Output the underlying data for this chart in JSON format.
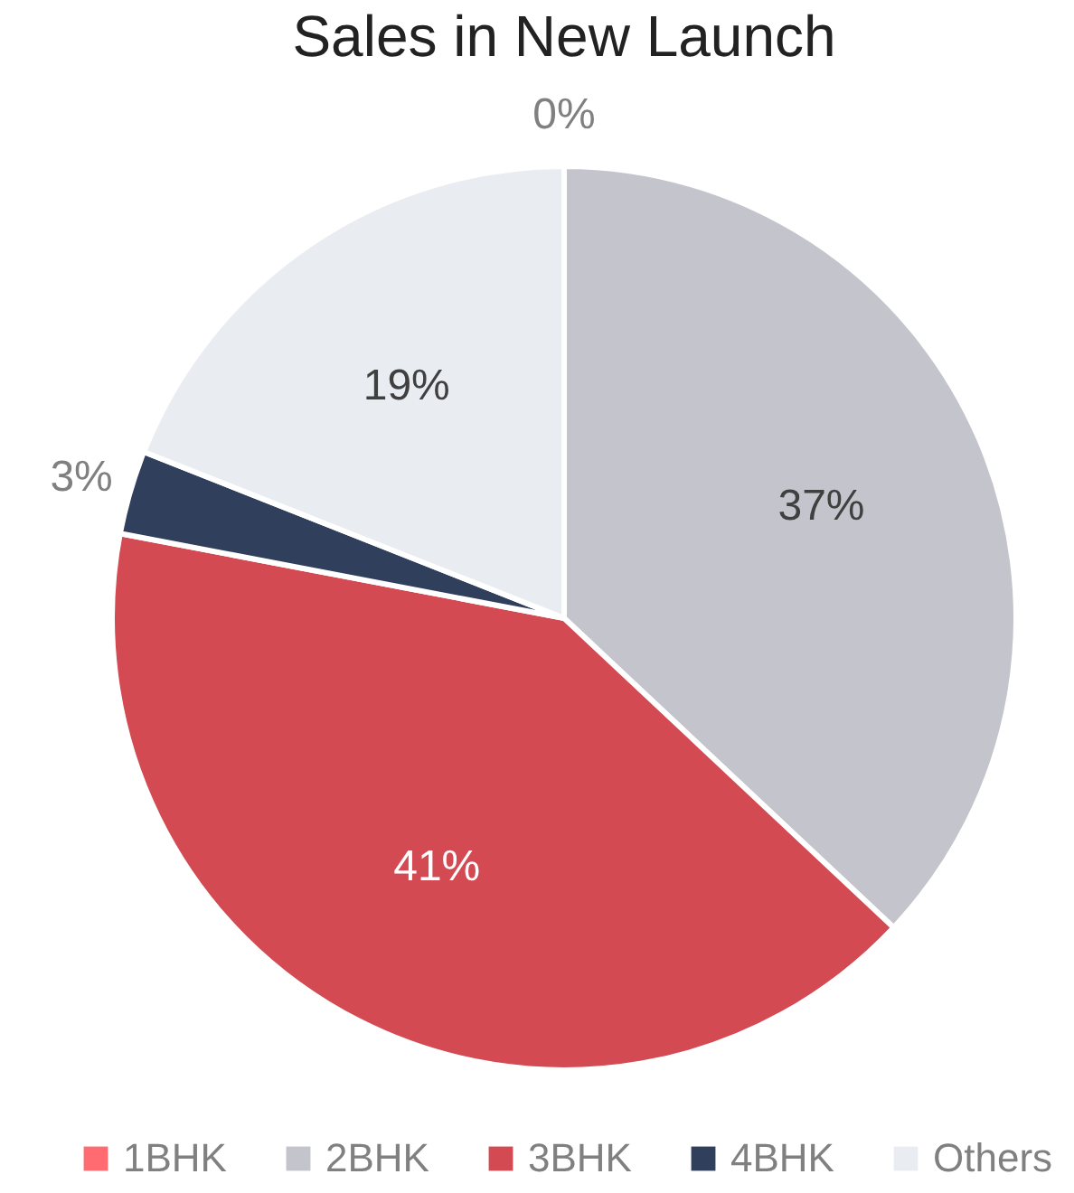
{
  "chart_data": {
    "type": "pie",
    "title": "Sales in New Launch",
    "categories": [
      "1BHK",
      "2BHK",
      "3BHK",
      "4BHK",
      "Others"
    ],
    "values": [
      0,
      37,
      41,
      3,
      19
    ],
    "colors": [
      "#ff6b70",
      "#c4c4cc",
      "#d34a52",
      "#2f3f5c",
      "#e9edf1"
    ],
    "value_labels": [
      "0%",
      "37%",
      "41%",
      "3%",
      "19%"
    ],
    "legend": "bottom"
  }
}
